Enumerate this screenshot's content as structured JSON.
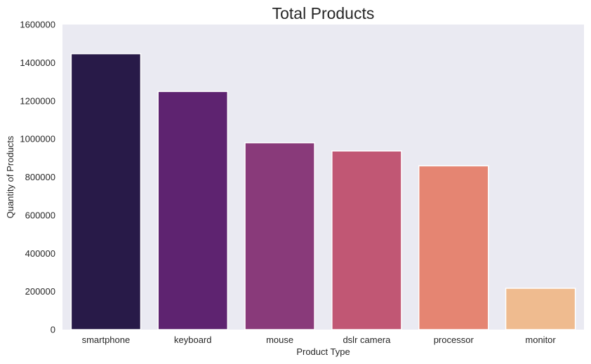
{
  "chart_data": {
    "type": "bar",
    "title": "Total Products",
    "xlabel": "Product Type",
    "ylabel": "Quantity of Products",
    "categories": [
      "smartphone",
      "keyboard",
      "mouse",
      "dslr camera",
      "processor",
      "monitor"
    ],
    "values": [
      1447000,
      1249000,
      980000,
      937000,
      859000,
      217000
    ],
    "colors": [
      "#281A48",
      "#5E2370",
      "#893A7A",
      "#C15774",
      "#E58572",
      "#EFBB8F"
    ],
    "ylim": [
      0,
      1600000
    ],
    "yticks": [
      0,
      200000,
      400000,
      600000,
      800000,
      1000000,
      1200000,
      1400000,
      1600000
    ],
    "ytick_labels": [
      "0",
      "200000",
      "400000",
      "600000",
      "800000",
      "1000000",
      "1200000",
      "1400000",
      "1600000"
    ],
    "grid": false,
    "background": "#EAEAF2"
  }
}
